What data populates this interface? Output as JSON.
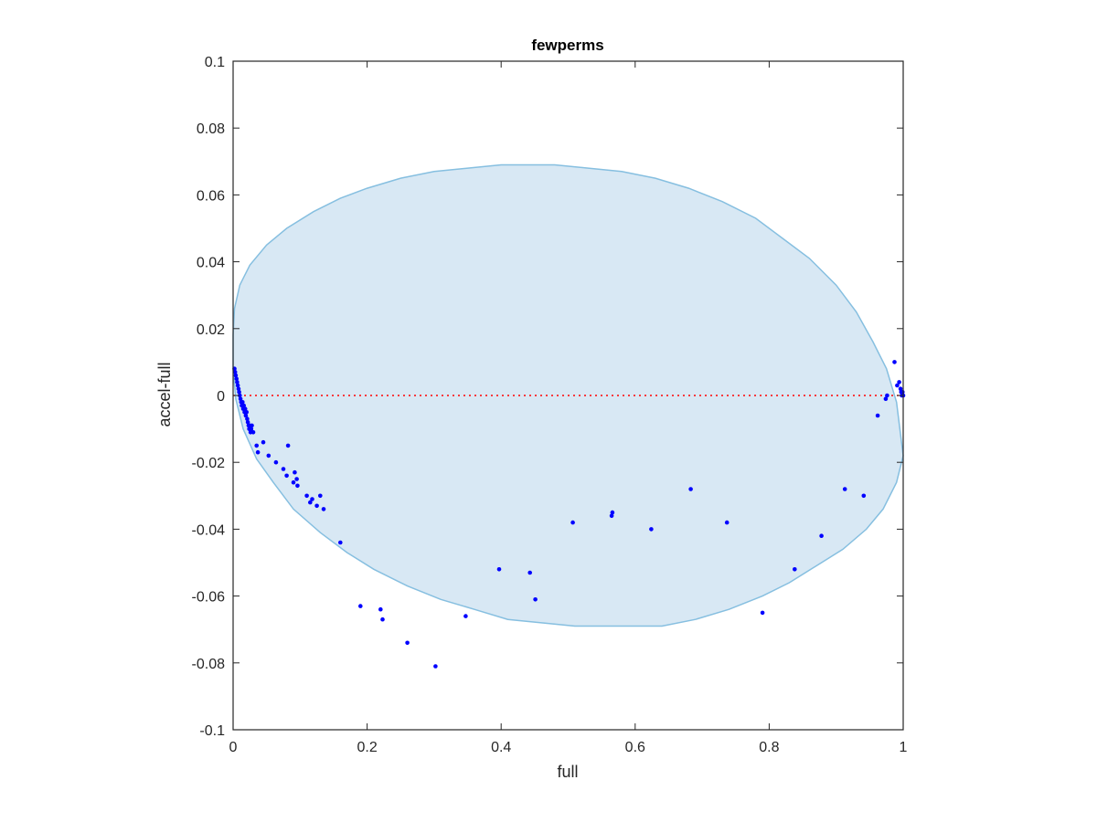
{
  "chart_data": {
    "type": "scatter",
    "title": "fewperms",
    "xlabel": "full",
    "ylabel": "accel-full",
    "xlim": [
      0,
      1
    ],
    "ylim": [
      -0.1,
      0.1
    ],
    "xticks": [
      0,
      0.2,
      0.4,
      0.6,
      0.8,
      1
    ],
    "xtick_labels": [
      "0",
      "0.2",
      "0.4",
      "0.6",
      "0.8",
      "1"
    ],
    "yticks": [
      -0.1,
      -0.08,
      -0.06,
      -0.04,
      -0.02,
      0,
      0.02,
      0.04,
      0.06,
      0.08,
      0.1
    ],
    "ytick_labels": [
      "-0.1",
      "-0.08",
      "-0.06",
      "-0.04",
      "-0.02",
      "0",
      "0.02",
      "0.04",
      "0.06",
      "0.08",
      "0.1"
    ],
    "grid": false,
    "box": true,
    "reference_line": {
      "y": 0,
      "style": "dotted",
      "color": "#ff0000"
    },
    "ellipse": {
      "color_fill": "#d8e8f4",
      "color_edge": "#86bfe0",
      "points": [
        [
          0.0,
          0.018
        ],
        [
          0.002,
          0.026
        ],
        [
          0.01,
          0.033
        ],
        [
          0.025,
          0.039
        ],
        [
          0.05,
          0.045
        ],
        [
          0.08,
          0.05
        ],
        [
          0.12,
          0.055
        ],
        [
          0.16,
          0.059
        ],
        [
          0.2,
          0.062
        ],
        [
          0.25,
          0.065
        ],
        [
          0.3,
          0.067
        ],
        [
          0.35,
          0.068
        ],
        [
          0.4,
          0.069
        ],
        [
          0.43,
          0.069
        ],
        [
          0.48,
          0.069
        ],
        [
          0.53,
          0.068
        ],
        [
          0.58,
          0.067
        ],
        [
          0.63,
          0.065
        ],
        [
          0.68,
          0.062
        ],
        [
          0.73,
          0.058
        ],
        [
          0.78,
          0.053
        ],
        [
          0.82,
          0.047
        ],
        [
          0.86,
          0.041
        ],
        [
          0.9,
          0.033
        ],
        [
          0.93,
          0.025
        ],
        [
          0.955,
          0.016
        ],
        [
          0.975,
          0.008
        ],
        [
          0.99,
          -0.002
        ],
        [
          1.0,
          -0.018
        ],
        [
          0.99,
          -0.026
        ],
        [
          0.97,
          -0.034
        ],
        [
          0.945,
          -0.04
        ],
        [
          0.91,
          -0.046
        ],
        [
          0.87,
          -0.051
        ],
        [
          0.83,
          -0.056
        ],
        [
          0.79,
          -0.06
        ],
        [
          0.74,
          -0.064
        ],
        [
          0.69,
          -0.067
        ],
        [
          0.64,
          -0.069
        ],
        [
          0.59,
          -0.069
        ],
        [
          0.56,
          -0.069
        ],
        [
          0.51,
          -0.069
        ],
        [
          0.46,
          -0.068
        ],
        [
          0.41,
          -0.067
        ],
        [
          0.36,
          -0.064
        ],
        [
          0.31,
          -0.061
        ],
        [
          0.26,
          -0.057
        ],
        [
          0.21,
          -0.052
        ],
        [
          0.17,
          -0.047
        ],
        [
          0.13,
          -0.041
        ],
        [
          0.09,
          -0.034
        ],
        [
          0.06,
          -0.026
        ],
        [
          0.035,
          -0.019
        ],
        [
          0.015,
          -0.01
        ],
        [
          0.004,
          -0.001
        ],
        [
          0.0,
          0.008
        ]
      ]
    },
    "series": [
      {
        "color": "#0000ff",
        "x": [
          0.002,
          0.003,
          0.004,
          0.005,
          0.006,
          0.007,
          0.008,
          0.009,
          0.01,
          0.011,
          0.012,
          0.013,
          0.014,
          0.015,
          0.016,
          0.017,
          0.018,
          0.019,
          0.02,
          0.021,
          0.022,
          0.023,
          0.024,
          0.025,
          0.026,
          0.027,
          0.028,
          0.03,
          0.035,
          0.037,
          0.045,
          0.053,
          0.064,
          0.075,
          0.08,
          0.082,
          0.09,
          0.092,
          0.095,
          0.096,
          0.11,
          0.115,
          0.118,
          0.125,
          0.13,
          0.135,
          0.16,
          0.19,
          0.22,
          0.223,
          0.26,
          0.302,
          0.347,
          0.397,
          0.443,
          0.451,
          0.507,
          0.565,
          0.566,
          0.624,
          0.683,
          0.737,
          0.79,
          0.838,
          0.878,
          0.913,
          0.941,
          0.962,
          0.974,
          0.976,
          0.987,
          0.991,
          0.994,
          0.996,
          0.997,
          0.998,
          0.999,
          1.0
        ],
        "y": [
          0.008,
          0.007,
          0.006,
          0.005,
          0.004,
          0.003,
          0.002,
          0.001,
          0.0,
          -0.001,
          -0.002,
          -0.003,
          -0.002,
          -0.004,
          -0.003,
          -0.005,
          -0.004,
          -0.006,
          -0.005,
          -0.007,
          -0.008,
          -0.009,
          -0.01,
          -0.009,
          -0.011,
          -0.01,
          -0.009,
          -0.011,
          -0.015,
          -0.017,
          -0.014,
          -0.018,
          -0.02,
          -0.022,
          -0.024,
          -0.015,
          -0.026,
          -0.023,
          -0.025,
          -0.027,
          -0.03,
          -0.032,
          -0.031,
          -0.033,
          -0.03,
          -0.034,
          -0.044,
          -0.063,
          -0.064,
          -0.067,
          -0.074,
          -0.081,
          -0.066,
          -0.052,
          -0.053,
          -0.061,
          -0.038,
          -0.036,
          -0.035,
          -0.04,
          -0.028,
          -0.038,
          -0.065,
          -0.052,
          -0.042,
          -0.028,
          -0.03,
          -0.006,
          -0.001,
          0.0,
          0.01,
          0.003,
          0.004,
          0.002,
          0.001,
          0.0,
          0.001,
          0.0
        ]
      }
    ]
  }
}
